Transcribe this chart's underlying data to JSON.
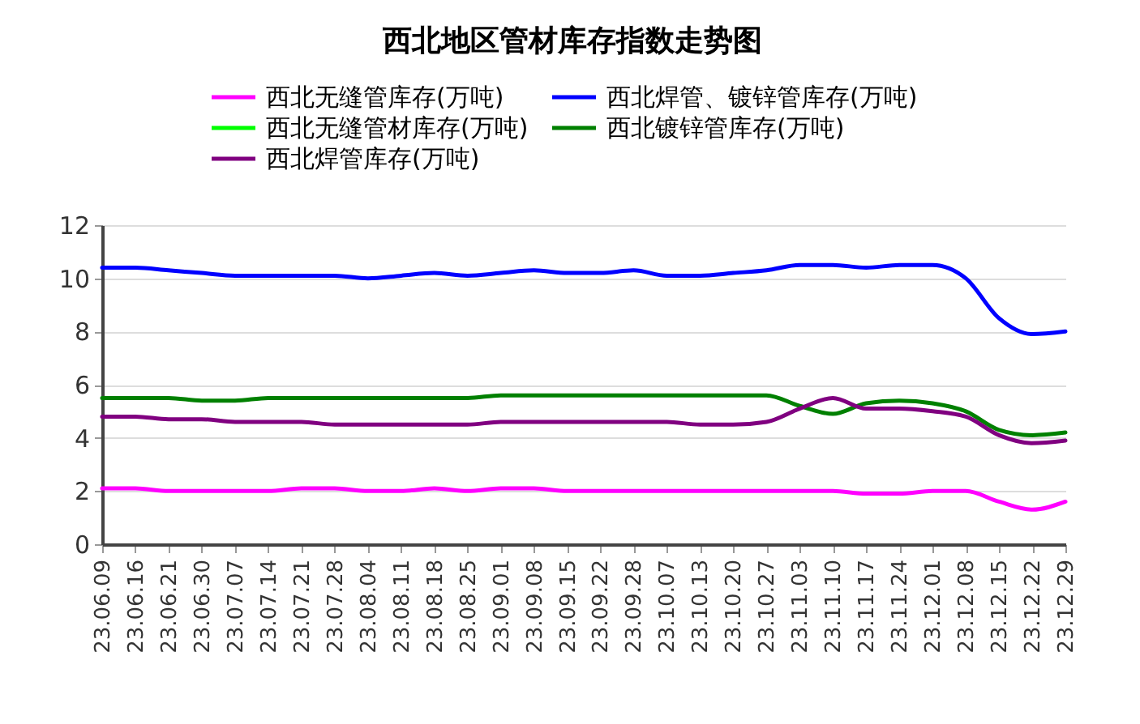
{
  "chart_data": {
    "type": "line",
    "title": "西北地区管材库存指数走势图",
    "categories": [
      "23.06.09",
      "23.06.16",
      "23.06.21",
      "23.06.30",
      "23.07.07",
      "23.07.14",
      "23.07.21",
      "23.07.28",
      "23.08.04",
      "23.08.11",
      "23.08.18",
      "23.08.25",
      "23.09.01",
      "23.09.08",
      "23.09.15",
      "23.09.22",
      "23.09.28",
      "23.10.07",
      "23.10.13",
      "23.10.20",
      "23.10.27",
      "23.11.03",
      "23.11.10",
      "23.11.17",
      "23.11.24",
      "23.12.01",
      "23.12.08",
      "23.12.15",
      "23.12.22",
      "23.12.29"
    ],
    "series": [
      {
        "name": "西北无缝管库存(万吨)",
        "color": "#ff00ff",
        "values": [
          2.1,
          2.1,
          2.0,
          2.0,
          2.0,
          2.0,
          2.1,
          2.1,
          2.0,
          2.0,
          2.1,
          2.0,
          2.1,
          2.1,
          2.0,
          2.0,
          2.0,
          2.0,
          2.0,
          2.0,
          2.0,
          2.0,
          2.0,
          1.9,
          1.9,
          2.0,
          2.0,
          1.6,
          1.3,
          1.6
        ]
      },
      {
        "name": "西北焊管、镀锌管库存(万吨)",
        "color": "#0000ff",
        "values": [
          10.4,
          10.4,
          10.3,
          10.2,
          10.1,
          10.1,
          10.1,
          10.1,
          10.0,
          10.1,
          10.2,
          10.1,
          10.2,
          10.3,
          10.2,
          10.2,
          10.3,
          10.1,
          10.1,
          10.2,
          10.3,
          10.5,
          10.5,
          10.4,
          10.5,
          10.5,
          10.0,
          8.5,
          7.9,
          8.0
        ]
      },
      {
        "name": "西北无缝管材库存(万吨)",
        "color": "#00ff00",
        "values": [
          null,
          null,
          null,
          null,
          null,
          null,
          null,
          null,
          null,
          null,
          null,
          null,
          null,
          null,
          null,
          null,
          null,
          null,
          null,
          null,
          null,
          null,
          null,
          null,
          null,
          null,
          null,
          null,
          null,
          null
        ]
      },
      {
        "name": "西北镀锌管库存(万吨)",
        "color": "#008000",
        "values": [
          5.5,
          5.5,
          5.5,
          5.4,
          5.4,
          5.5,
          5.5,
          5.5,
          5.5,
          5.5,
          5.5,
          5.5,
          5.6,
          5.6,
          5.6,
          5.6,
          5.6,
          5.6,
          5.6,
          5.6,
          5.6,
          5.2,
          4.9,
          5.3,
          5.4,
          5.3,
          5.0,
          4.3,
          4.1,
          4.2
        ]
      },
      {
        "name": "西北焊管库存(万吨)",
        "color": "#800080",
        "values": [
          4.8,
          4.8,
          4.7,
          4.7,
          4.6,
          4.6,
          4.6,
          4.5,
          4.5,
          4.5,
          4.5,
          4.5,
          4.6,
          4.6,
          4.6,
          4.6,
          4.6,
          4.6,
          4.5,
          4.5,
          4.6,
          5.1,
          5.5,
          5.1,
          5.1,
          5.0,
          4.8,
          4.1,
          3.8,
          3.9
        ]
      }
    ],
    "ylim": [
      0,
      12
    ],
    "yticks": [
      0,
      2,
      4,
      6,
      8,
      10,
      12
    ],
    "grid": "y",
    "legend": "top",
    "marker": "none",
    "line_style": "solid"
  }
}
